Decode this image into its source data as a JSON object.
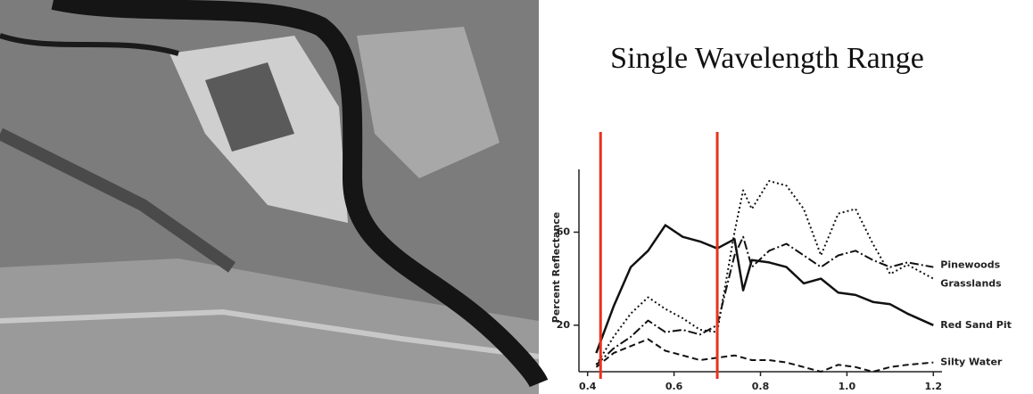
{
  "chart_data": {
    "type": "line",
    "title": "Single Wavelength Range",
    "y_label": "Percent Reflectance",
    "x": [
      0.42,
      0.46,
      0.5,
      0.54,
      0.58,
      0.62,
      0.66,
      0.7,
      0.74,
      0.76,
      0.78,
      0.82,
      0.86,
      0.9,
      0.94,
      0.98,
      1.02,
      1.06,
      1.1,
      1.14,
      1.2
    ],
    "series": [
      {
        "name": "Pinewoods",
        "color": "#111111",
        "style": "dashdot",
        "values": [
          3,
          10,
          15,
          22,
          17,
          18,
          16,
          20,
          50,
          58,
          45,
          52,
          55,
          50,
          45,
          50,
          52,
          48,
          45,
          47,
          45
        ]
      },
      {
        "name": "Grasslands",
        "color": "#111111",
        "style": "dotted",
        "values": [
          3,
          15,
          25,
          32,
          27,
          23,
          18,
          17,
          60,
          78,
          70,
          82,
          80,
          70,
          50,
          68,
          70,
          55,
          42,
          46,
          40
        ]
      },
      {
        "name": "Red Sand Pit",
        "color": "#111111",
        "style": "solid",
        "values": [
          8,
          28,
          45,
          52,
          63,
          58,
          56,
          53,
          57,
          35,
          48,
          47,
          45,
          38,
          40,
          34,
          33,
          30,
          29,
          25,
          20
        ]
      },
      {
        "name": "Silty Water",
        "color": "#111111",
        "style": "dashed",
        "values": [
          2,
          8,
          11,
          14,
          9,
          7,
          5,
          6,
          7,
          6,
          5,
          5,
          4,
          2,
          0,
          3,
          2,
          0,
          2,
          3,
          4
        ]
      }
    ],
    "highlight_x": [
      0.43,
      0.7
    ],
    "highlight_color": "#e8321c",
    "xlim": [
      0.38,
      1.22
    ],
    "ylim": [
      0,
      87
    ],
    "xticks": [
      {
        "value": 0.4,
        "label": "0.4"
      },
      {
        "value": 0.6,
        "label": "0.6"
      },
      {
        "value": 0.8,
        "label": "0.8"
      },
      {
        "value": 1.0,
        "label": "1.0"
      },
      {
        "value": 1.2,
        "label": "1.2"
      }
    ],
    "yticks": [
      20,
      60
    ]
  }
}
